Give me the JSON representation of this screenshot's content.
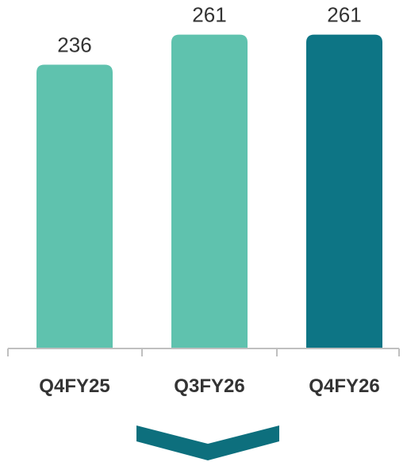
{
  "chart_data": {
    "type": "bar",
    "categories": [
      "Q4FY25",
      "Q3FY26",
      "Q4FY26"
    ],
    "values": [
      236,
      261,
      261
    ],
    "data_labels": [
      "236",
      "261",
      "261"
    ],
    "ylim": [
      0,
      270
    ],
    "grid": false,
    "legend": "none",
    "bar_colors": [
      "#5fc2ae",
      "#5fc2ae",
      "#0d7585"
    ],
    "axis_color": "#bfbfbf",
    "arrow_color": "#0d6f7d",
    "arrow_direction": "down"
  }
}
